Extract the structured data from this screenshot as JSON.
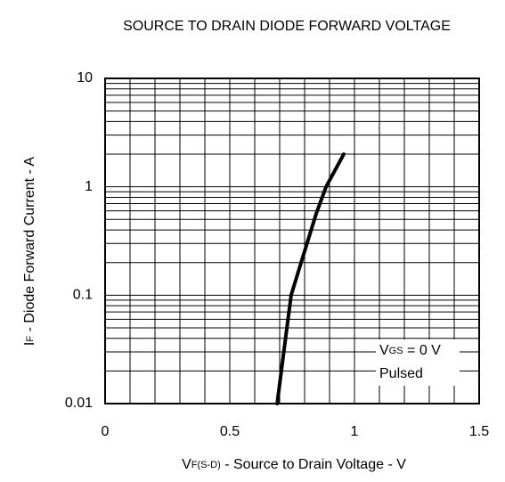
{
  "chart_data": {
    "type": "line",
    "title": "SOURCE TO DRAIN DIODE FORWARD VOLTAGE",
    "xlabel": [
      "V",
      "F(S-D)",
      " - Source to Drain Voltage - V"
    ],
    "ylabel": [
      "I",
      "F",
      " - Diode Forward Current - A"
    ],
    "annotation": [
      "V",
      "GS",
      " = 0 V"
    ],
    "annotation2": "Pulsed",
    "x": [
      0.69,
      0.714,
      0.746,
      0.786,
      0.846,
      0.886,
      0.957
    ],
    "series": [
      {
        "color": "#000000",
        "values": [
          0.01,
          0.027,
          0.1,
          0.2,
          0.56,
          1,
          2
        ]
      }
    ],
    "xlim": [
      0,
      1.5
    ],
    "xticks": [
      0,
      0.5,
      1,
      1.5
    ],
    "ylim": [
      0.01,
      10
    ],
    "yticks": [
      0.01,
      0.1,
      1,
      10
    ],
    "ylog": true,
    "grid": true,
    "xminor": [
      0.1,
      0.2,
      0.3,
      0.4,
      0.6,
      0.7,
      0.8,
      0.9,
      1.1,
      1.2,
      1.3,
      1.4
    ],
    "yminor": [
      0.02,
      0.03,
      0.04,
      0.05,
      0.06,
      0.07,
      0.08,
      0.09,
      0.2,
      0.3,
      0.4,
      0.5,
      0.6,
      0.7,
      0.8,
      0.9,
      2,
      3,
      4,
      5,
      6,
      7,
      8,
      9
    ]
  }
}
